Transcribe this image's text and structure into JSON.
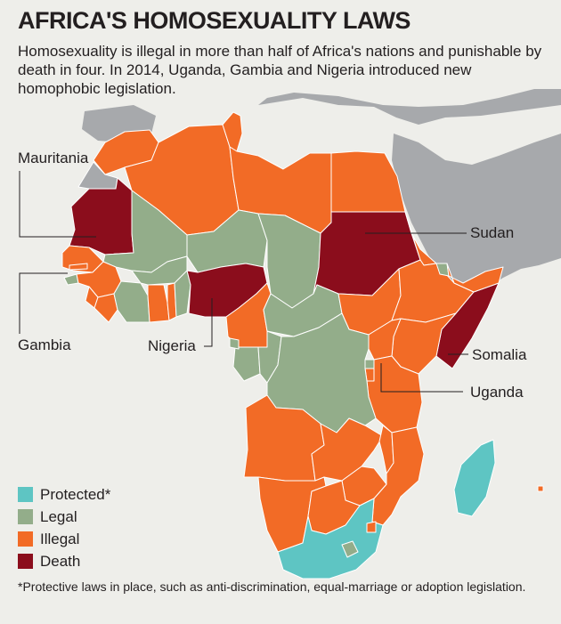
{
  "title": "AFRICA'S HOMOSEXUALITY LAWS",
  "subtitle": "Homosexuality is illegal in more than half of Africa's nations and punishable by death in four. In 2014, Uganda, Gambia and Nigeria introduced new homophobic legislation.",
  "colors": {
    "background": "#eeeeea",
    "other_land": "#a7a9ac",
    "protected": "#5ec5c3",
    "legal": "#93ad8a",
    "illegal": "#f26b26",
    "death": "#8b0d1c",
    "border": "#ffffff",
    "leader": "#231f20"
  },
  "labels": {
    "mauritania": "Mauritania",
    "sudan": "Sudan",
    "gambia": "Gambia",
    "nigeria": "Nigeria",
    "somalia": "Somalia",
    "uganda": "Uganda"
  },
  "legend": [
    {
      "label": "Protected*",
      "status": "protected"
    },
    {
      "label": "Legal",
      "status": "legal"
    },
    {
      "label": "Illegal",
      "status": "illegal"
    },
    {
      "label": "Death",
      "status": "death"
    }
  ],
  "footnote": "*Protective laws in place, such as anti-discrimination, equal-marriage or adoption legislation.",
  "countries": [
    {
      "name": "Morocco",
      "status": "illegal"
    },
    {
      "name": "Western Sahara",
      "status": "other"
    },
    {
      "name": "Algeria",
      "status": "illegal"
    },
    {
      "name": "Tunisia",
      "status": "illegal"
    },
    {
      "name": "Libya",
      "status": "illegal"
    },
    {
      "name": "Egypt",
      "status": "illegal"
    },
    {
      "name": "Mauritania",
      "status": "death"
    },
    {
      "name": "Mali",
      "status": "legal"
    },
    {
      "name": "Niger",
      "status": "legal"
    },
    {
      "name": "Chad",
      "status": "legal"
    },
    {
      "name": "Sudan",
      "status": "death"
    },
    {
      "name": "Senegal",
      "status": "illegal"
    },
    {
      "name": "Gambia",
      "status": "illegal"
    },
    {
      "name": "Guinea-Bissau",
      "status": "legal"
    },
    {
      "name": "Guinea",
      "status": "illegal"
    },
    {
      "name": "Sierra Leone",
      "status": "illegal"
    },
    {
      "name": "Liberia",
      "status": "illegal"
    },
    {
      "name": "Ivory Coast",
      "status": "legal"
    },
    {
      "name": "Burkina Faso",
      "status": "legal"
    },
    {
      "name": "Ghana",
      "status": "illegal"
    },
    {
      "name": "Togo",
      "status": "illegal"
    },
    {
      "name": "Benin",
      "status": "legal"
    },
    {
      "name": "Nigeria",
      "status": "death"
    },
    {
      "name": "Cameroon",
      "status": "illegal"
    },
    {
      "name": "Central African Republic",
      "status": "legal"
    },
    {
      "name": "South Sudan",
      "status": "illegal"
    },
    {
      "name": "Eritrea",
      "status": "illegal"
    },
    {
      "name": "Ethiopia",
      "status": "illegal"
    },
    {
      "name": "Djibouti",
      "status": "legal"
    },
    {
      "name": "Somalia",
      "status": "death"
    },
    {
      "name": "Somaliland",
      "status": "illegal"
    },
    {
      "name": "Kenya",
      "status": "illegal"
    },
    {
      "name": "Uganda",
      "status": "illegal"
    },
    {
      "name": "Rwanda",
      "status": "legal"
    },
    {
      "name": "Burundi",
      "status": "illegal"
    },
    {
      "name": "Tanzania",
      "status": "illegal"
    },
    {
      "name": "Gabon",
      "status": "legal"
    },
    {
      "name": "Equatorial Guinea",
      "status": "legal"
    },
    {
      "name": "Republic of the Congo",
      "status": "legal"
    },
    {
      "name": "DR Congo",
      "status": "legal"
    },
    {
      "name": "Angola",
      "status": "illegal"
    },
    {
      "name": "Zambia",
      "status": "illegal"
    },
    {
      "name": "Malawi",
      "status": "illegal"
    },
    {
      "name": "Mozambique",
      "status": "illegal"
    },
    {
      "name": "Zimbabwe",
      "status": "illegal"
    },
    {
      "name": "Namibia",
      "status": "illegal"
    },
    {
      "name": "Botswana",
      "status": "illegal"
    },
    {
      "name": "South Africa",
      "status": "protected"
    },
    {
      "name": "Lesotho",
      "status": "legal"
    },
    {
      "name": "Swaziland",
      "status": "illegal"
    },
    {
      "name": "Madagascar",
      "status": "protected"
    },
    {
      "name": "Mauritius",
      "status": "illegal"
    }
  ]
}
